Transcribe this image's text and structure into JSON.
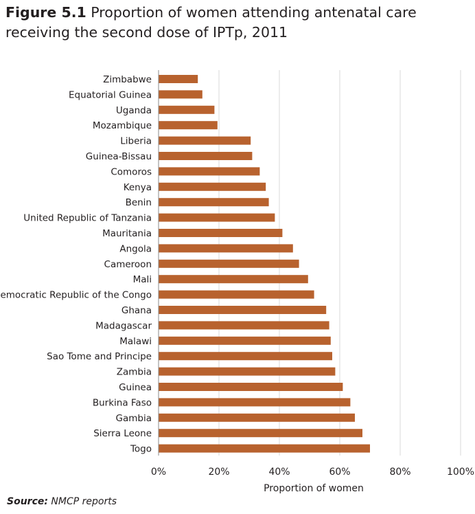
{
  "figure": {
    "number": "Figure 5.1",
    "title": "Proportion of women attending antenatal care receiving the second dose of IPTp, 2011"
  },
  "source": {
    "label": "Source:",
    "text": "NMCP reports"
  },
  "colors": {
    "bar": "#b8622e",
    "grid": "#d9d9d9",
    "axis": "#888888",
    "text": "#231f20"
  },
  "chart_data": {
    "type": "bar",
    "orientation": "horizontal",
    "categories": [
      "Zimbabwe",
      "Equatorial Guinea",
      "Uganda",
      "Mozambique",
      "Liberia",
      "Guinea-Bissau",
      "Comoros",
      "Kenya",
      "Benin",
      "United Republic of Tanzania",
      "Mauritania",
      "Angola",
      "Cameroon",
      "Mali",
      "Democratic Republic of the Congo",
      "Ghana",
      "Madagascar",
      "Malawi",
      "Sao Tome and Principe",
      "Zambia",
      "Guinea",
      "Burkina Faso",
      "Gambia",
      "Sierra Leone",
      "Togo"
    ],
    "values": [
      13,
      14.5,
      18.5,
      19.5,
      30.5,
      31,
      33.5,
      35.5,
      36.5,
      38.5,
      41,
      44.5,
      46.5,
      49.5,
      51.5,
      55.5,
      56.5,
      57,
      57.5,
      58.5,
      61,
      63.5,
      65,
      67.5,
      70
    ],
    "xlabel": "Proportion of women",
    "ylabel": "",
    "xlim": [
      0,
      100
    ],
    "ticks": [
      "0%",
      "20%",
      "40%",
      "60%",
      "80%",
      "100%"
    ],
    "grid": true
  }
}
